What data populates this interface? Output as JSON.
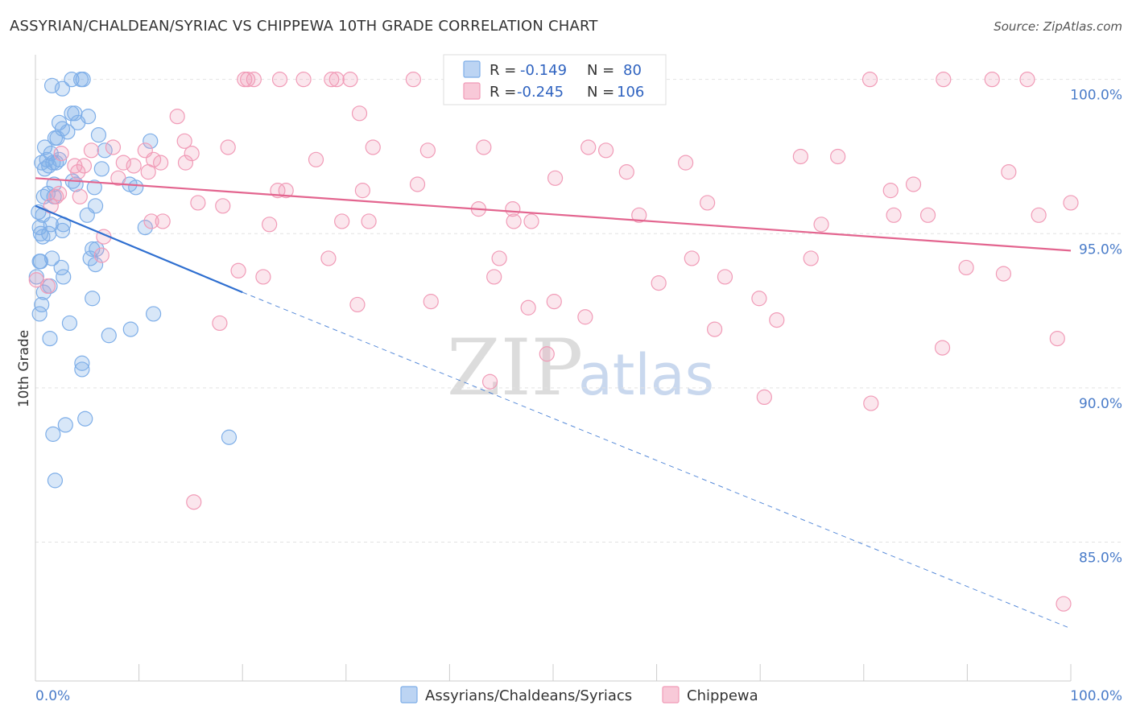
{
  "title": "ASSYRIAN/CHALDEAN/SYRIAC VS CHIPPEWA 10TH GRADE CORRELATION CHART",
  "source": "Source: ZipAtlas.com",
  "watermark": {
    "part1": "ZIP",
    "part2": "atlas"
  },
  "chart_data": {
    "type": "scatter",
    "xlabel": "",
    "ylabel": "10th Grade",
    "xlim": [
      0,
      100
    ],
    "ylim": [
      80.5,
      100.8
    ],
    "x_tick_labels": [
      "0.0%",
      "100.0%"
    ],
    "y_ticks": [
      85,
      90,
      95,
      100
    ],
    "y_tick_labels": [
      "85.0%",
      "90.0%",
      "95.0%",
      "100.0%"
    ],
    "legend": {
      "position": "top-center",
      "entries": [
        {
          "name": "Assyrians/Chaldeans/Syriacs",
          "r_label": "R =",
          "r_value": "-0.149",
          "n_label": "N =",
          "n_value": "80"
        },
        {
          "name": "Chippewa",
          "r_label": "R =",
          "r_value": "-0.245",
          "n_label": "N =",
          "n_value": "106"
        }
      ]
    },
    "series": [
      {
        "name": "Assyrians/Chaldeans/Syriacs",
        "color": "#7eaee8",
        "line_color": "#2f6fd0",
        "trend": {
          "x0": 0,
          "y0": 95.9,
          "x1": 20,
          "y1": 93.1,
          "dash_to_x": 100,
          "dash_to_y": 82.2
        },
        "points": [
          [
            3.5,
            100
          ],
          [
            4.4,
            100
          ],
          [
            4.6,
            100
          ],
          [
            1.6,
            99.8
          ],
          [
            2.6,
            99.7
          ],
          [
            3.5,
            98.9
          ],
          [
            3.8,
            98.9
          ],
          [
            5.1,
            98.8
          ],
          [
            2.3,
            98.6
          ],
          [
            4.1,
            98.6
          ],
          [
            2.6,
            98.4
          ],
          [
            3.1,
            98.3
          ],
          [
            6.1,
            98.2
          ],
          [
            1.9,
            98.1
          ],
          [
            2.1,
            98.1
          ],
          [
            11.1,
            98
          ],
          [
            0.9,
            97.8
          ],
          [
            1.5,
            97.6
          ],
          [
            1.1,
            97.4
          ],
          [
            2.3,
            97.4
          ],
          [
            6.7,
            97.7
          ],
          [
            0.6,
            97.3
          ],
          [
            1.7,
            97.3
          ],
          [
            1.3,
            97.2
          ],
          [
            0.9,
            97.1
          ],
          [
            6.4,
            97.1
          ],
          [
            2,
            97.3
          ],
          [
            3.6,
            96.7
          ],
          [
            1.8,
            96.6
          ],
          [
            3.9,
            96.6
          ],
          [
            5.7,
            96.5
          ],
          [
            9.1,
            96.6
          ],
          [
            9.7,
            96.5
          ],
          [
            1.2,
            96.3
          ],
          [
            0.8,
            96.2
          ],
          [
            1.8,
            96.2
          ],
          [
            0.3,
            95.7
          ],
          [
            5.8,
            95.9
          ],
          [
            0.7,
            95.6
          ],
          [
            5,
            95.6
          ],
          [
            1.5,
            95.3
          ],
          [
            0.4,
            95.2
          ],
          [
            2.7,
            95.3
          ],
          [
            0.5,
            95.0
          ],
          [
            1.3,
            95.0
          ],
          [
            2.6,
            95.1
          ],
          [
            10.6,
            95.2
          ],
          [
            0.7,
            94.9
          ],
          [
            5.5,
            94.5
          ],
          [
            5.9,
            94.5
          ],
          [
            0.5,
            94.1
          ],
          [
            1.6,
            94.2
          ],
          [
            5.3,
            94.2
          ],
          [
            5.8,
            94.0
          ],
          [
            0.4,
            94.1
          ],
          [
            2.5,
            93.9
          ],
          [
            0.1,
            93.6
          ],
          [
            2.7,
            93.6
          ],
          [
            1.4,
            93.3
          ],
          [
            0.8,
            93.1
          ],
          [
            5.5,
            92.9
          ],
          [
            0.6,
            92.7
          ],
          [
            0.4,
            92.4
          ],
          [
            11.4,
            92.4
          ],
          [
            3.3,
            92.1
          ],
          [
            9.2,
            91.9
          ],
          [
            1.4,
            91.6
          ],
          [
            7.1,
            91.7
          ],
          [
            4.5,
            90.8
          ],
          [
            4.5,
            90.6
          ],
          [
            4.8,
            89
          ],
          [
            2.9,
            88.8
          ],
          [
            1.7,
            88.5
          ],
          [
            18.7,
            88.4
          ],
          [
            1.9,
            87
          ]
        ]
      },
      {
        "name": "Chippewa",
        "color": "#f19bb7",
        "line_color": "#e3658f",
        "trend": {
          "x0": 0,
          "y0": 96.8,
          "x1": 100,
          "y1": 94.45
        },
        "points": [
          [
            20.2,
            100
          ],
          [
            20.5,
            100
          ],
          [
            21.1,
            100
          ],
          [
            23.6,
            100
          ],
          [
            25.9,
            100
          ],
          [
            28.6,
            100
          ],
          [
            29.1,
            100
          ],
          [
            30.4,
            100
          ],
          [
            36.5,
            100
          ],
          [
            80.6,
            100
          ],
          [
            87.7,
            100
          ],
          [
            92.4,
            100
          ],
          [
            95.8,
            100
          ],
          [
            31.3,
            98.9
          ],
          [
            13.7,
            98.8
          ],
          [
            14.4,
            98
          ],
          [
            7.5,
            97.8
          ],
          [
            10.6,
            97.7
          ],
          [
            18.6,
            97.8
          ],
          [
            32.6,
            97.8
          ],
          [
            37.9,
            97.7
          ],
          [
            43.3,
            97.8
          ],
          [
            53.4,
            97.8
          ],
          [
            55.1,
            97.7
          ],
          [
            15.1,
            97.6
          ],
          [
            2.5,
            97.6
          ],
          [
            5.4,
            97.7
          ],
          [
            11.4,
            97.4
          ],
          [
            27.1,
            97.4
          ],
          [
            73.9,
            97.5
          ],
          [
            77.5,
            97.5
          ],
          [
            8.5,
            97.3
          ],
          [
            12.1,
            97.3
          ],
          [
            14.5,
            97.3
          ],
          [
            3.8,
            97.2
          ],
          [
            4.7,
            97.2
          ],
          [
            9.5,
            97.2
          ],
          [
            10.9,
            97
          ],
          [
            62.8,
            97.3
          ],
          [
            4.1,
            97
          ],
          [
            8,
            96.8
          ],
          [
            50.2,
            96.8
          ],
          [
            57.1,
            97
          ],
          [
            94,
            97
          ],
          [
            36.9,
            96.6
          ],
          [
            23.4,
            96.4
          ],
          [
            24.2,
            96.4
          ],
          [
            31.6,
            96.4
          ],
          [
            84.8,
            96.6
          ],
          [
            82.6,
            96.4
          ],
          [
            2.3,
            96.3
          ],
          [
            2,
            96.2
          ],
          [
            4.3,
            96.2
          ],
          [
            15.7,
            96
          ],
          [
            18.1,
            95.9
          ],
          [
            64.9,
            96
          ],
          [
            100,
            96
          ],
          [
            1.5,
            95.9
          ],
          [
            42.8,
            95.8
          ],
          [
            46.1,
            95.8
          ],
          [
            58.3,
            95.6
          ],
          [
            82.9,
            95.6
          ],
          [
            86.2,
            95.6
          ],
          [
            96.9,
            95.6
          ],
          [
            11.2,
            95.4
          ],
          [
            12.3,
            95.4
          ],
          [
            22.6,
            95.3
          ],
          [
            29.6,
            95.4
          ],
          [
            32.2,
            95.4
          ],
          [
            46.2,
            95.4
          ],
          [
            47.9,
            95.4
          ],
          [
            75.9,
            95.3
          ],
          [
            6.6,
            94.9
          ],
          [
            6.4,
            94.3
          ],
          [
            28.3,
            94.2
          ],
          [
            44.8,
            94.2
          ],
          [
            63.4,
            94.2
          ],
          [
            74.9,
            94.2
          ],
          [
            89.9,
            93.9
          ],
          [
            19.6,
            93.8
          ],
          [
            22,
            93.6
          ],
          [
            44.3,
            93.6
          ],
          [
            60.2,
            93.4
          ],
          [
            66.6,
            93.6
          ],
          [
            93.5,
            93.7
          ],
          [
            0.1,
            93.5
          ],
          [
            1.2,
            93.3
          ],
          [
            31.1,
            92.7
          ],
          [
            38.2,
            92.8
          ],
          [
            47.6,
            92.6
          ],
          [
            50.1,
            92.8
          ],
          [
            69.9,
            92.9
          ],
          [
            53.1,
            92.3
          ],
          [
            65.6,
            91.9
          ],
          [
            71.6,
            92.2
          ],
          [
            17.8,
            92.1
          ],
          [
            87.6,
            91.3
          ],
          [
            98.7,
            91.6
          ],
          [
            49.4,
            91.1
          ],
          [
            43.9,
            90.2
          ],
          [
            70.4,
            89.7
          ],
          [
            80.7,
            89.5
          ],
          [
            15.3,
            86.3
          ],
          [
            99.3,
            83
          ]
        ]
      }
    ]
  }
}
